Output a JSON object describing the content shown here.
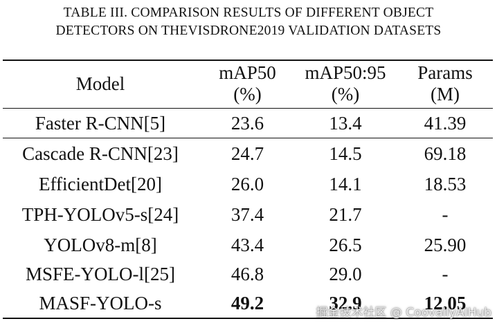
{
  "caption": {
    "line1": "TABLE III. COMPARISON RESULTS OF DIFFERENT OBJECT",
    "line2": "DETECTORS ON THEVISDRONE2019 VALIDATION DATASETS"
  },
  "header": {
    "model": "Model",
    "map50_line1": "mAP50",
    "map50_line2": "(%)",
    "map5095_line1": "mAP50:95",
    "map5095_line2": "(%)",
    "params_line1": "Params",
    "params_line2": "(M)"
  },
  "rows": [
    {
      "model": "Faster R-CNN[5]",
      "map50": "23.6",
      "map5095": "13.4",
      "params": "41.39"
    },
    {
      "model": "Cascade R-CNN[23]",
      "map50": "24.7",
      "map5095": "14.5",
      "params": "69.18"
    },
    {
      "model": "EfficientDet[20]",
      "map50": "26.0",
      "map5095": "14.1",
      "params": "18.53"
    },
    {
      "model": "TPH-YOLOv5-s[24]",
      "map50": "37.4",
      "map5095": "21.7",
      "params": "-"
    },
    {
      "model": "YOLOv8-m[8]",
      "map50": "43.4",
      "map5095": "26.5",
      "params": "25.90"
    },
    {
      "model": "MSFE-YOLO-l[25]",
      "map50": "46.8",
      "map5095": "29.0",
      "params": "-"
    },
    {
      "model": "MASF-YOLO-s",
      "map50": "49.2",
      "map5095": "32.9",
      "params": "12.05",
      "bold_values": true
    }
  ],
  "watermark": "掘金技术社区 @ CoovallyAIHub"
}
